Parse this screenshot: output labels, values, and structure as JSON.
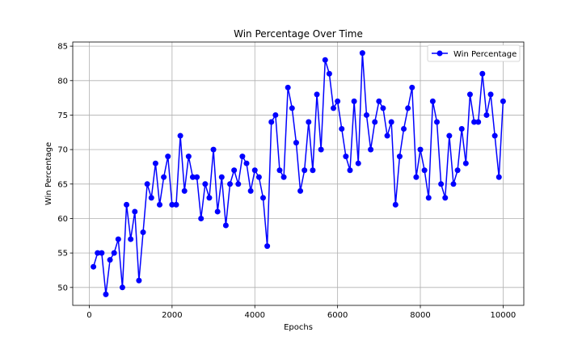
{
  "chart_data": {
    "type": "line",
    "title": "Win Percentage Over Time",
    "xlabel": "Epochs",
    "ylabel": "Win Percentage",
    "xlim": [
      -400,
      10500
    ],
    "ylim": [
      47.4,
      85.6
    ],
    "x_ticks": [
      0,
      2000,
      4000,
      6000,
      8000,
      10000
    ],
    "y_ticks": [
      50,
      55,
      60,
      65,
      70,
      75,
      80,
      85
    ],
    "grid": true,
    "legend_position": "top-right",
    "series": [
      {
        "name": "Win Percentage",
        "color": "#0000ff",
        "marker": "circle",
        "x": [
          100,
          200,
          300,
          400,
          500,
          600,
          700,
          800,
          900,
          1000,
          1100,
          1200,
          1300,
          1400,
          1500,
          1600,
          1700,
          1800,
          1900,
          2000,
          2100,
          2200,
          2300,
          2400,
          2500,
          2600,
          2700,
          2800,
          2900,
          3000,
          3100,
          3200,
          3300,
          3400,
          3500,
          3600,
          3700,
          3800,
          3900,
          4000,
          4100,
          4200,
          4300,
          4400,
          4500,
          4600,
          4700,
          4800,
          4900,
          5000,
          5100,
          5200,
          5300,
          5400,
          5500,
          5600,
          5700,
          5800,
          5900,
          6000,
          6100,
          6200,
          6300,
          6400,
          6500,
          6600,
          6700,
          6800,
          6900,
          7000,
          7100,
          7200,
          7300,
          7400,
          7500,
          7600,
          7700,
          7800,
          7900,
          8000,
          8100,
          8200,
          8300,
          8400,
          8500,
          8600,
          8700,
          8800,
          8900,
          9000,
          9100,
          9200,
          9300,
          9400,
          9500,
          9600,
          9700,
          9800,
          9900,
          10000
        ],
        "y": [
          53,
          55,
          55,
          49,
          54,
          55,
          57,
          50,
          62,
          57,
          61,
          51,
          58,
          65,
          63,
          68,
          62,
          66,
          69,
          62,
          62,
          72,
          64,
          69,
          66,
          66,
          60,
          65,
          63,
          70,
          61,
          66,
          59,
          65,
          67,
          65,
          69,
          68,
          64,
          67,
          66,
          63,
          56,
          74,
          75,
          67,
          66,
          79,
          76,
          71,
          64,
          67,
          74,
          67,
          78,
          70,
          83,
          81,
          76,
          77,
          73,
          69,
          67,
          77,
          68,
          84,
          75,
          70,
          74,
          77,
          76,
          72,
          74,
          62,
          69,
          73,
          76,
          79,
          66,
          70,
          67,
          63,
          77,
          74,
          65,
          63,
          72,
          65,
          67,
          73,
          68,
          78,
          74,
          74,
          81,
          75,
          78,
          72,
          66,
          77
        ]
      }
    ]
  }
}
